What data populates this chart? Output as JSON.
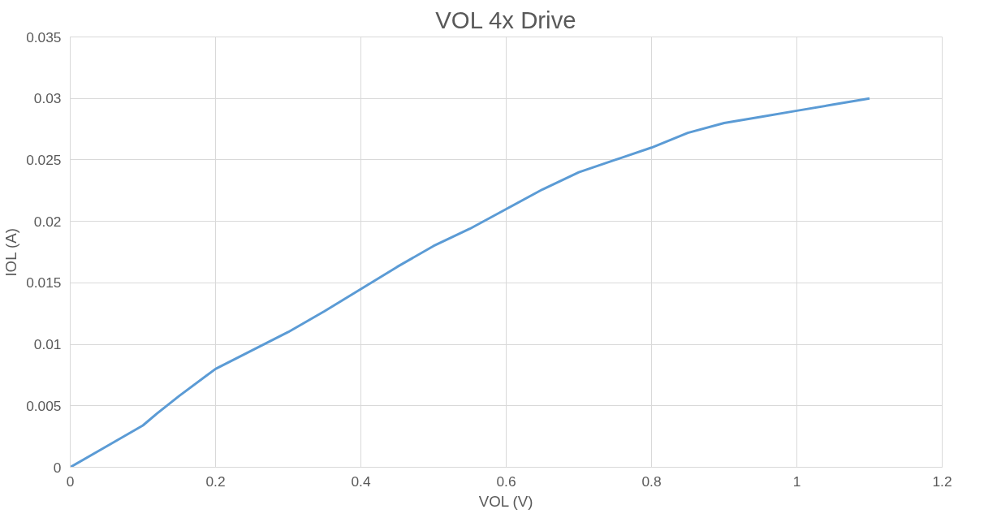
{
  "chart_data": {
    "type": "line",
    "title": "VOL 4x Drive",
    "xlabel": "VOL (V)",
    "ylabel": "IOL (A)",
    "x": [
      0,
      0.05,
      0.1,
      0.12,
      0.15,
      0.2,
      0.25,
      0.3,
      0.35,
      0.4,
      0.45,
      0.5,
      0.55,
      0.6,
      0.65,
      0.7,
      0.75,
      0.8,
      0.85,
      0.9,
      0.95,
      1.0,
      1.05,
      1.1
    ],
    "series": [
      {
        "color": "#5b9bd5",
        "values": [
          0,
          0.0017,
          0.0034,
          0.0044,
          0.0058,
          0.008,
          0.0095,
          0.011,
          0.0127,
          0.0145,
          0.0163,
          0.018,
          0.0194,
          0.021,
          0.0226,
          0.024,
          0.025,
          0.026,
          0.0272,
          0.028,
          0.0285,
          0.029,
          0.0295,
          0.03
        ]
      }
    ],
    "xlim": [
      0,
      1.2
    ],
    "xticks": [
      0,
      0.2,
      0.4,
      0.6,
      0.8,
      1,
      1.2
    ],
    "ylim": [
      0,
      0.035
    ],
    "yticks": [
      0,
      0.005,
      0.01,
      0.015,
      0.02,
      0.025,
      0.03,
      0.035
    ],
    "grid": true,
    "marker": "none",
    "line_style": "solid"
  }
}
